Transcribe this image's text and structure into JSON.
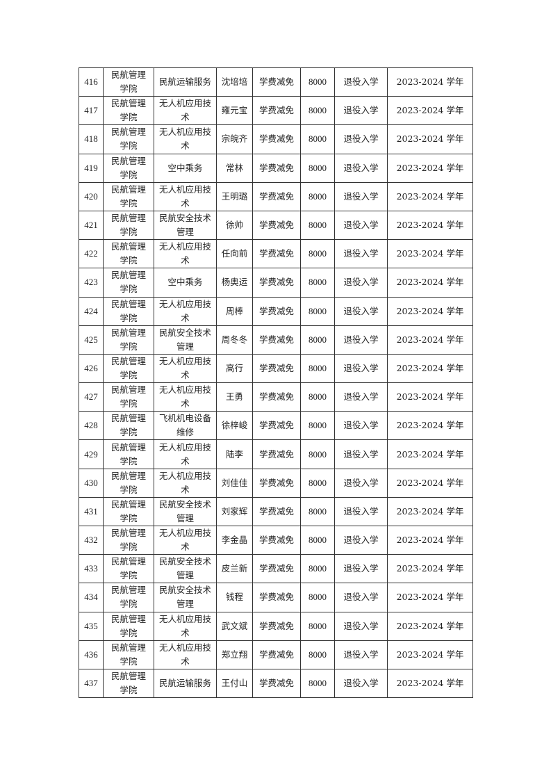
{
  "table": {
    "rows": [
      [
        "416",
        "民航管理学院",
        "民航运输服务",
        "沈培培",
        "学费减免",
        "8000",
        "退役入学",
        "2023-2024 学年"
      ],
      [
        "417",
        "民航管理学院",
        "无人机应用技术",
        "雍元宝",
        "学费减免",
        "8000",
        "退役入学",
        "2023-2024 学年"
      ],
      [
        "418",
        "民航管理学院",
        "无人机应用技术",
        "宗皖齐",
        "学费减免",
        "8000",
        "退役入学",
        "2023-2024 学年"
      ],
      [
        "419",
        "民航管理学院",
        "空中乘务",
        "常林",
        "学费减免",
        "8000",
        "退役入学",
        "2023-2024 学年"
      ],
      [
        "420",
        "民航管理学院",
        "无人机应用技术",
        "王明璐",
        "学费减免",
        "8000",
        "退役入学",
        "2023-2024 学年"
      ],
      [
        "421",
        "民航管理学院",
        "民航安全技术管理",
        "徐帅",
        "学费减免",
        "8000",
        "退役入学",
        "2023-2024 学年"
      ],
      [
        "422",
        "民航管理学院",
        "无人机应用技术",
        "任向前",
        "学费减免",
        "8000",
        "退役入学",
        "2023-2024 学年"
      ],
      [
        "423",
        "民航管理学院",
        "空中乘务",
        "杨奥运",
        "学费减免",
        "8000",
        "退役入学",
        "2023-2024 学年"
      ],
      [
        "424",
        "民航管理学院",
        "无人机应用技术",
        "周棒",
        "学费减免",
        "8000",
        "退役入学",
        "2023-2024 学年"
      ],
      [
        "425",
        "民航管理学院",
        "民航安全技术管理",
        "周冬冬",
        "学费减免",
        "8000",
        "退役入学",
        "2023-2024 学年"
      ],
      [
        "426",
        "民航管理学院",
        "无人机应用技术",
        "高行",
        "学费减免",
        "8000",
        "退役入学",
        "2023-2024 学年"
      ],
      [
        "427",
        "民航管理学院",
        "无人机应用技术",
        "王勇",
        "学费减免",
        "8000",
        "退役入学",
        "2023-2024 学年"
      ],
      [
        "428",
        "民航管理学院",
        "飞机机电设备维修",
        "徐梓峻",
        "学费减免",
        "8000",
        "退役入学",
        "2023-2024 学年"
      ],
      [
        "429",
        "民航管理学院",
        "无人机应用技术",
        "陆李",
        "学费减免",
        "8000",
        "退役入学",
        "2023-2024 学年"
      ],
      [
        "430",
        "民航管理学院",
        "无人机应用技术",
        "刘佳佳",
        "学费减免",
        "8000",
        "退役入学",
        "2023-2024 学年"
      ],
      [
        "431",
        "民航管理学院",
        "民航安全技术管理",
        "刘家辉",
        "学费减免",
        "8000",
        "退役入学",
        "2023-2024 学年"
      ],
      [
        "432",
        "民航管理学院",
        "无人机应用技术",
        "李金晶",
        "学费减免",
        "8000",
        "退役入学",
        "2023-2024 学年"
      ],
      [
        "433",
        "民航管理学院",
        "民航安全技术管理",
        "皮兰新",
        "学费减免",
        "8000",
        "退役入学",
        "2023-2024 学年"
      ],
      [
        "434",
        "民航管理学院",
        "民航安全技术管理",
        "钱程",
        "学费减免",
        "8000",
        "退役入学",
        "2023-2024 学年"
      ],
      [
        "435",
        "民航管理学院",
        "无人机应用技术",
        "武文斌",
        "学费减免",
        "8000",
        "退役入学",
        "2023-2024 学年"
      ],
      [
        "436",
        "民航管理学院",
        "无人机应用技术",
        "郑立翔",
        "学费减免",
        "8000",
        "退役入学",
        "2023-2024 学年"
      ],
      [
        "437",
        "民航管理学院",
        "民航运输服务",
        "王付山",
        "学费减免",
        "8000",
        "退役入学",
        "2023-2024 学年"
      ]
    ]
  }
}
